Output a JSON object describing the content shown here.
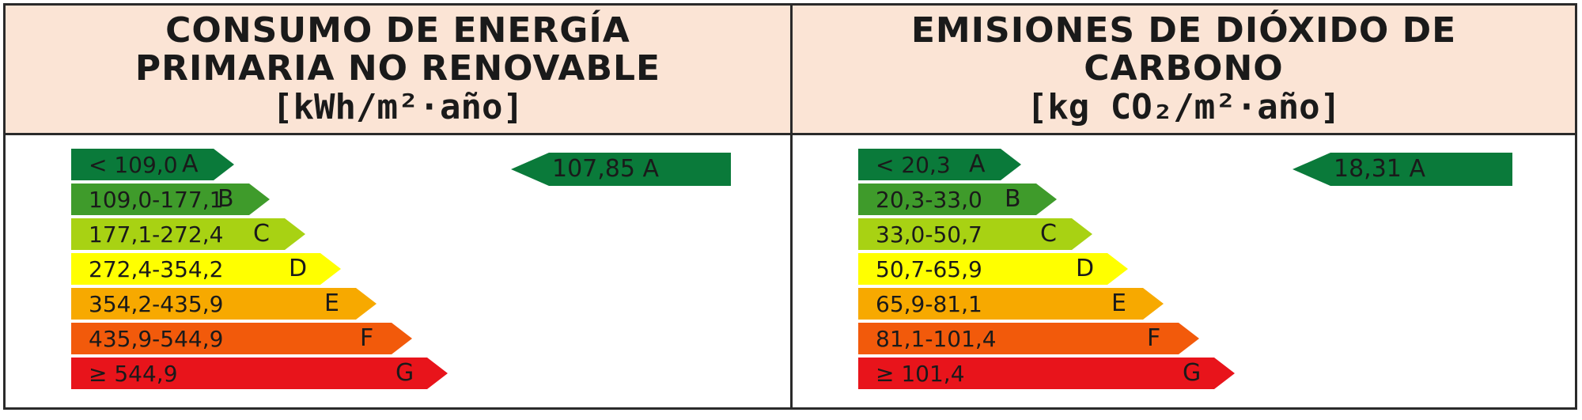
{
  "energy": {
    "title_lines": [
      "CONSUMO DE ENERGÍA",
      "PRIMARIA NO RENOVABLE"
    ],
    "unit": "[kWh/m²·año]",
    "classes": [
      {
        "range": "< 109,0",
        "letter": "A",
        "color": "#0a7a3a"
      },
      {
        "range": "109,0-177,1",
        "letter": "B",
        "color": "#3f9b2b"
      },
      {
        "range": "177,1-272,4",
        "letter": "C",
        "color": "#a8d213"
      },
      {
        "range": "272,4-354,2",
        "letter": "D",
        "color": "#ffff00"
      },
      {
        "range": "354,2-435,9",
        "letter": "E",
        "color": "#f7a900"
      },
      {
        "range": "435,9-544,9",
        "letter": "F",
        "color": "#f25a0b"
      },
      {
        "range": "≥ 544,9",
        "letter": "G",
        "color": "#e8141b"
      }
    ],
    "result": {
      "value": "107,85",
      "letter": "A",
      "color": "#0a7a3a"
    }
  },
  "emissions": {
    "title_lines": [
      "EMISIONES DE DIÓXIDO DE",
      "CARBONO"
    ],
    "unit": "[kg CO₂/m²·año]",
    "classes": [
      {
        "range": "< 20,3",
        "letter": "A",
        "color": "#0a7a3a"
      },
      {
        "range": "20,3-33,0",
        "letter": "B",
        "color": "#3f9b2b"
      },
      {
        "range": "33,0-50,7",
        "letter": "C",
        "color": "#a8d213"
      },
      {
        "range": "50,7-65,9",
        "letter": "D",
        "color": "#ffff00"
      },
      {
        "range": "65,9-81,1",
        "letter": "E",
        "color": "#f7a900"
      },
      {
        "range": "81,1-101,4",
        "letter": "F",
        "color": "#f25a0b"
      },
      {
        "range": "≥ 101,4",
        "letter": "G",
        "color": "#e8141b"
      }
    ],
    "result": {
      "value": "18,31",
      "letter": "A",
      "color": "#0a7a3a"
    }
  }
}
